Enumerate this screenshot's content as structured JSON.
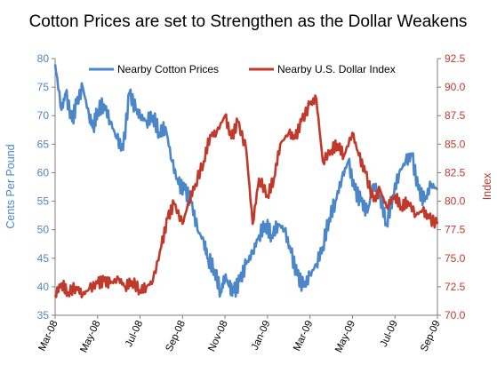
{
  "chart_data": {
    "type": "line",
    "title": "Cotton Prices are set to Strengthen as the Dollar Weakens",
    "ylabel_left": "Cents Per Pound",
    "ylabel_right": "Index",
    "ylim_left": [
      35,
      80
    ],
    "ylim_right": [
      70.0,
      92.5
    ],
    "yticks_left": [
      "35",
      "40",
      "45",
      "50",
      "55",
      "60",
      "65",
      "70",
      "75",
      "80"
    ],
    "yticks_right": [
      "70.0",
      "72.5",
      "75.0",
      "77.5",
      "80.0",
      "82.5",
      "85.0",
      "87.5",
      "90.0",
      "92.5"
    ],
    "x_ticks": [
      "Mar-08",
      "May-08",
      "Jul-08",
      "Sep-08",
      "Nov-08",
      "Jan-09",
      "Mar-09",
      "May-09",
      "Jul-09",
      "Sep-09"
    ],
    "grid": false,
    "legend": "top-center",
    "colors": {
      "cotton": "#4a86c8",
      "dollar": "#c0392b"
    },
    "series": [
      {
        "name": "Nearby Cotton Prices",
        "axis": "left",
        "x": [
          0,
          0.3,
          0.5,
          0.8,
          1.0,
          1.3,
          1.6,
          1.8,
          2.0,
          2.3,
          2.6,
          2.9,
          3.2,
          3.5,
          3.8,
          4.0,
          4.3,
          4.6,
          4.9,
          5.2,
          5.5,
          5.8,
          6.1,
          6.4,
          6.7,
          7.0,
          7.2,
          7.5,
          7.8,
          8.0,
          8.2,
          8.4,
          8.7,
          9.0,
          9.3,
          9.6,
          9.9,
          10.2,
          10.5,
          10.8,
          11.1,
          11.4,
          11.7,
          12.0,
          12.3,
          12.6,
          12.9,
          13.2,
          13.5,
          13.8,
          14.1,
          14.4,
          14.7,
          15.0,
          15.3,
          15.6,
          15.9,
          16.2,
          16.5,
          16.8,
          17.1,
          17.4,
          17.7,
          18.0
        ],
        "y": [
          79,
          71,
          74,
          69,
          72,
          75,
          70,
          68,
          71,
          72,
          69,
          66,
          64,
          74,
          71,
          70,
          69,
          70,
          67,
          68,
          62,
          58,
          57,
          55,
          50,
          48,
          45,
          43,
          39,
          42,
          40,
          39,
          41,
          44,
          46,
          49,
          51,
          49,
          51,
          50,
          46,
          42,
          40,
          42,
          44,
          47,
          52,
          55,
          59,
          62,
          57,
          55,
          53,
          58,
          56,
          51,
          56,
          60,
          62,
          63,
          57,
          55,
          58,
          57
        ]
      },
      {
        "name": "Nearby U.S. Dollar Index",
        "axis": "right",
        "x": [
          0,
          0.3,
          0.6,
          1.0,
          1.3,
          1.6,
          2.0,
          2.3,
          2.6,
          3.0,
          3.3,
          3.6,
          4.0,
          4.3,
          4.6,
          5.0,
          5.3,
          5.6,
          6.0,
          6.3,
          6.6,
          7.0,
          7.3,
          7.6,
          8.0,
          8.3,
          8.6,
          9.0,
          9.3,
          9.6,
          10.0,
          10.3,
          10.6,
          11.0,
          11.3,
          11.6,
          12.0,
          12.3,
          12.6,
          13.0,
          13.3,
          13.6,
          14.0,
          14.3,
          14.6,
          15.0,
          15.3,
          15.6,
          16.0,
          16.3,
          16.6,
          17.0,
          17.3,
          17.6,
          18.0
        ],
        "y": [
          71.8,
          72.8,
          72.0,
          72.5,
          71.8,
          72.3,
          72.8,
          73.0,
          72.8,
          73.2,
          72.5,
          73.0,
          72.2,
          72.5,
          73.0,
          76.0,
          78.5,
          79.8,
          78.0,
          80.0,
          81.5,
          83.5,
          85.8,
          86.0,
          87.5,
          85.5,
          87.0,
          84.5,
          78.0,
          82.0,
          80.5,
          82.0,
          85.0,
          86.0,
          85.5,
          87.0,
          88.5,
          89.0,
          83.5,
          84.5,
          85.0,
          84.0,
          86.0,
          84.0,
          82.5,
          80.0,
          81.0,
          79.5,
          80.5,
          79.5,
          80.0,
          78.8,
          79.2,
          78.5,
          78.0
        ]
      }
    ]
  }
}
